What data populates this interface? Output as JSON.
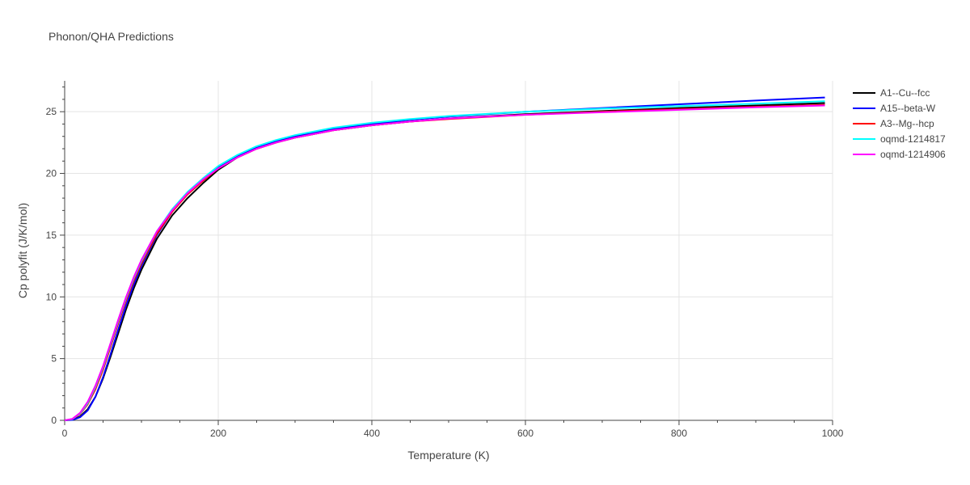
{
  "chart_data": {
    "type": "line",
    "title": "Phonon/QHA Predictions",
    "xlabel": "Temperature (K)",
    "ylabel": "Cp polyfit (J/K/mol)",
    "xlim": [
      0,
      1000
    ],
    "ylim": [
      0,
      27.5
    ],
    "x_ticks": [
      0,
      200,
      400,
      600,
      800,
      1000
    ],
    "y_ticks": [
      0,
      5,
      10,
      15,
      20,
      25
    ],
    "grid": true,
    "legend_position": "right",
    "series": [
      {
        "name": "A1--Cu--fcc",
        "color": "#000000",
        "x": [
          0,
          10,
          20,
          30,
          40,
          50,
          60,
          70,
          80,
          90,
          100,
          120,
          140,
          160,
          180,
          200,
          225,
          250,
          275,
          300,
          350,
          400,
          450,
          500,
          600,
          700,
          800,
          900,
          990
        ],
        "y": [
          0,
          0.05,
          0.3,
          0.9,
          1.9,
          3.4,
          5.2,
          7.1,
          9.0,
          10.7,
          12.2,
          14.7,
          16.6,
          18.0,
          19.2,
          20.3,
          21.3,
          22.0,
          22.5,
          22.9,
          23.5,
          23.9,
          24.2,
          24.45,
          24.8,
          25.05,
          25.3,
          25.5,
          25.7
        ]
      },
      {
        "name": "A15--beta-W",
        "color": "#0000ff",
        "x": [
          0,
          10,
          20,
          30,
          40,
          50,
          60,
          70,
          80,
          90,
          100,
          120,
          140,
          160,
          180,
          200,
          225,
          250,
          275,
          300,
          350,
          400,
          450,
          500,
          600,
          700,
          800,
          900,
          990
        ],
        "y": [
          0,
          0.03,
          0.25,
          0.8,
          1.9,
          3.5,
          5.4,
          7.4,
          9.3,
          11.0,
          12.5,
          15.0,
          16.9,
          18.4,
          19.5,
          20.5,
          21.4,
          22.1,
          22.6,
          23.0,
          23.6,
          24.0,
          24.35,
          24.6,
          25.0,
          25.3,
          25.6,
          25.9,
          26.15
        ]
      },
      {
        "name": "A3--Mg--hcp",
        "color": "#ff0000",
        "x": [
          0,
          10,
          20,
          30,
          40,
          50,
          60,
          70,
          80,
          90,
          100,
          120,
          140,
          160,
          180,
          200,
          225,
          250,
          275,
          300,
          350,
          400,
          450,
          500,
          600,
          700,
          800,
          900,
          990
        ],
        "y": [
          0,
          0.1,
          0.5,
          1.3,
          2.5,
          4.1,
          6.0,
          7.9,
          9.7,
          11.3,
          12.7,
          15.1,
          16.9,
          18.3,
          19.4,
          20.4,
          21.3,
          22.0,
          22.5,
          22.9,
          23.5,
          23.9,
          24.2,
          24.4,
          24.75,
          25.0,
          25.2,
          25.4,
          25.55
        ]
      },
      {
        "name": "oqmd-1214817",
        "color": "#00ffff",
        "x": [
          0,
          10,
          20,
          30,
          40,
          50,
          60,
          70,
          80,
          90,
          100,
          120,
          140,
          160,
          180,
          200,
          225,
          250,
          275,
          300,
          350,
          400,
          450,
          500,
          600,
          700,
          800,
          900,
          990
        ],
        "y": [
          0,
          0.1,
          0.55,
          1.4,
          2.7,
          4.3,
          6.2,
          8.1,
          9.9,
          11.5,
          12.9,
          15.3,
          17.1,
          18.5,
          19.6,
          20.6,
          21.5,
          22.2,
          22.7,
          23.1,
          23.7,
          24.1,
          24.4,
          24.65,
          25.0,
          25.25,
          25.45,
          25.65,
          25.85
        ]
      },
      {
        "name": "oqmd-1214906",
        "color": "#ff00ff",
        "x": [
          0,
          10,
          20,
          30,
          40,
          50,
          60,
          70,
          80,
          90,
          100,
          120,
          140,
          160,
          180,
          200,
          225,
          250,
          275,
          300,
          350,
          400,
          450,
          500,
          600,
          700,
          800,
          900,
          990
        ],
        "y": [
          0,
          0.12,
          0.6,
          1.5,
          2.8,
          4.4,
          6.3,
          8.2,
          10.0,
          11.6,
          13.0,
          15.3,
          17.0,
          18.4,
          19.5,
          20.4,
          21.3,
          22.0,
          22.5,
          22.9,
          23.5,
          23.9,
          24.2,
          24.45,
          24.75,
          24.95,
          25.15,
          25.35,
          25.5
        ]
      }
    ]
  }
}
